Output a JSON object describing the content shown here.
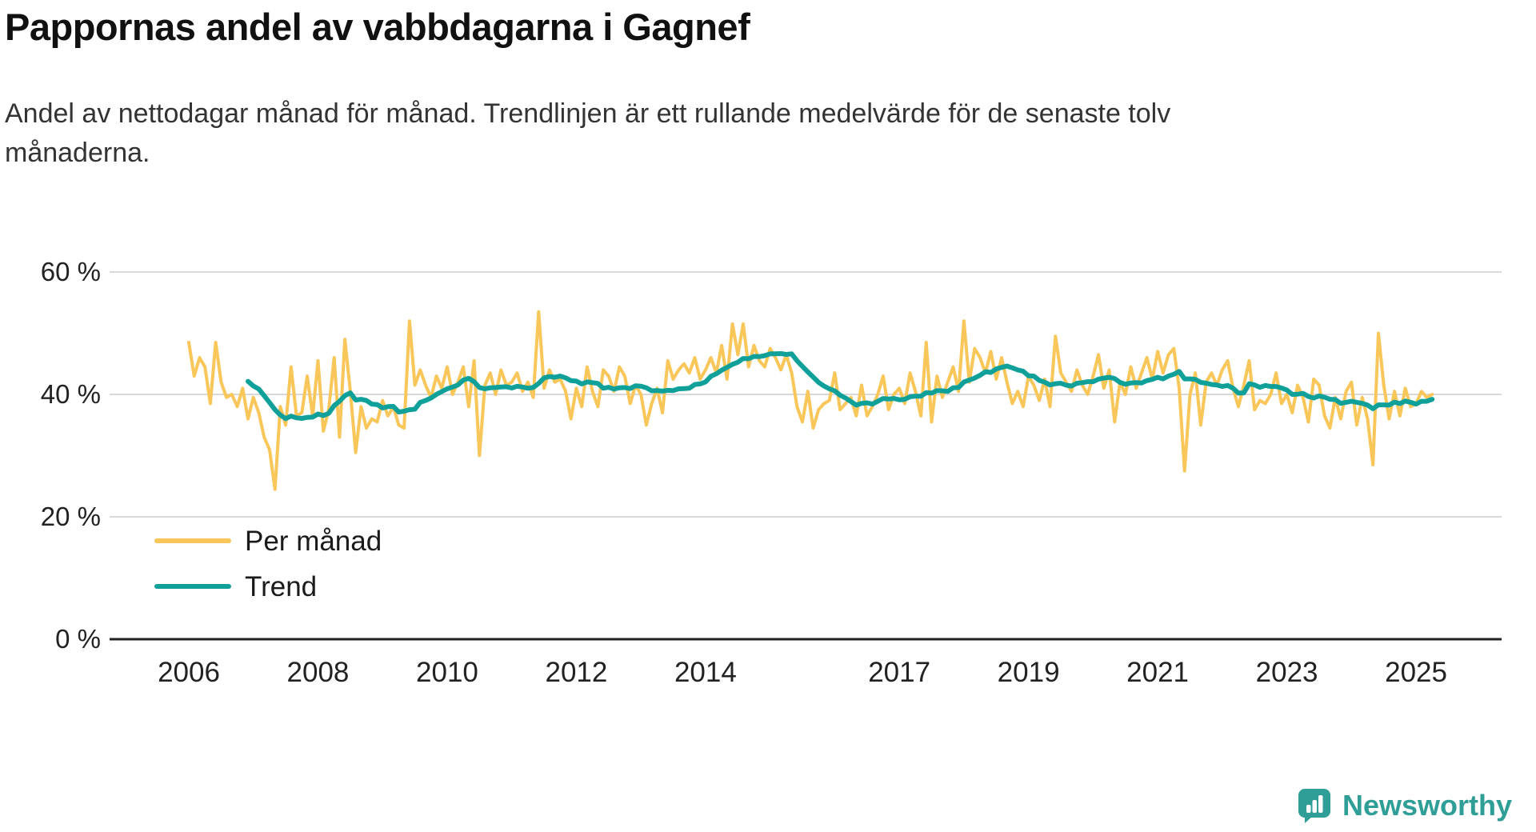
{
  "header": {
    "title": "Pappornas andel av vabbdagarna i Gagnef",
    "subtitle": "Andel av nettodagar månad för månad. Trendlinjen är ett rullande medelvärde för de senaste tolv månaderna."
  },
  "branding": {
    "name": "Newsworthy",
    "icon": "bar-chart-logo-icon",
    "color": "#2f9e97"
  },
  "chart_data": {
    "type": "line",
    "title": "Pappornas andel av vabbdagarna i Gagnef",
    "xlabel": "",
    "ylabel": "",
    "ylim": [
      0,
      60
    ],
    "grid": "horizontal",
    "legend_position": "inside-left-bottom",
    "y_ticks": [
      {
        "value": 0,
        "label": "0 %"
      },
      {
        "value": 20,
        "label": "20 %"
      },
      {
        "value": 40,
        "label": "40 %"
      },
      {
        "value": 60,
        "label": "60 %"
      }
    ],
    "x_ticks": [
      2006,
      2008,
      2010,
      2012,
      2014,
      2017,
      2019,
      2021,
      2023,
      2025
    ],
    "x_start_year": 2006,
    "x_start_month": 1,
    "colors": {
      "monthly": "#F9C65A",
      "trend": "#0FA099",
      "grid": "#d8d8d8",
      "axis": "#222222",
      "tick_text": "#222222"
    },
    "series": [
      {
        "name": "Per månad",
        "role": "monthly",
        "values": [
          48.5,
          43,
          46,
          44.5,
          38.5,
          48.5,
          42,
          39.5,
          40,
          38,
          41,
          36,
          39.5,
          37,
          33,
          31,
          24.5,
          38,
          35,
          44.5,
          36.5,
          37,
          43,
          36.5,
          45.5,
          34,
          37.5,
          46,
          33,
          49,
          40.5,
          30.5,
          38,
          34.5,
          36,
          35.5,
          39,
          36.5,
          38,
          35,
          34.5,
          52,
          41.5,
          44,
          41.5,
          39.5,
          43,
          41,
          44.5,
          40,
          42,
          44.5,
          38,
          45.5,
          30,
          41.5,
          43.5,
          40,
          44,
          41.5,
          42,
          43.5,
          40.5,
          42,
          39.5,
          53.5,
          41,
          44,
          42,
          42.5,
          40.5,
          36,
          41,
          38,
          44.5,
          40.5,
          38,
          44,
          43,
          40.5,
          44.5,
          43,
          38.5,
          41.5,
          40,
          35,
          38.5,
          41,
          37,
          45.5,
          42.5,
          44,
          45,
          43.5,
          46,
          42.5,
          44,
          46,
          43.5,
          48,
          42.5,
          51.5,
          46.5,
          51.5,
          44.5,
          48,
          45.5,
          44.5,
          47.5,
          46,
          44,
          46.5,
          43.5,
          38,
          35.5,
          40.5,
          34.5,
          37.5,
          38.5,
          39,
          43.5,
          37.5,
          38.5,
          39.5,
          36.5,
          41.5,
          36.5,
          38,
          40,
          43,
          37.5,
          40,
          41,
          38.5,
          43.5,
          40.5,
          36.5,
          48.5,
          35.5,
          43,
          39.5,
          42,
          44.5,
          40.5,
          52,
          42,
          47.5,
          46,
          43.5,
          47,
          42.5,
          46,
          42,
          38.5,
          40.5,
          38,
          43,
          41.5,
          39,
          42.5,
          38,
          49.5,
          43.5,
          42,
          40.5,
          44,
          41.5,
          40,
          43,
          46.5,
          41,
          44,
          35.5,
          42,
          40,
          44.5,
          41,
          43.5,
          46,
          42.5,
          47,
          43.5,
          46.5,
          47.5,
          41,
          27.5,
          40,
          43.5,
          35,
          42,
          43.5,
          41.5,
          44,
          45.5,
          41,
          38,
          41.5,
          45.5,
          37.5,
          39,
          38.5,
          40,
          43.5,
          38.5,
          40,
          37,
          41.5,
          39.5,
          35.5,
          42.5,
          41.5,
          36.5,
          34.5,
          39.5,
          36,
          40.5,
          42,
          35,
          39.5,
          36,
          28.5,
          50,
          41.5,
          36,
          40.5,
          36.5,
          41,
          38,
          38.5,
          40.5,
          39.5,
          40
        ]
      },
      {
        "name": "Trend",
        "role": "trend",
        "computed": "rolling_mean_12_of_monthly"
      }
    ],
    "legend": [
      "Per månad",
      "Trend"
    ]
  }
}
